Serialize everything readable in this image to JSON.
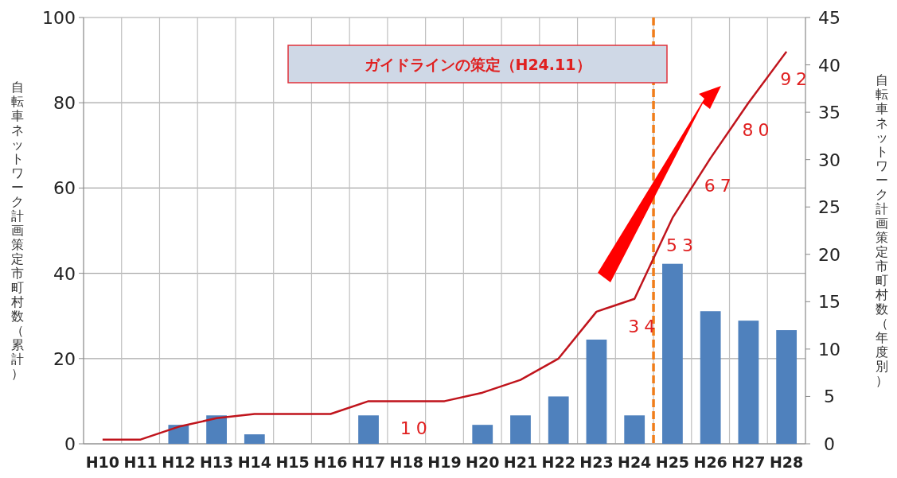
{
  "chart_data": {
    "type": "bar",
    "ylabel": "自転車ネットワーク計画策定市町村数（累計）",
    "y2label": "自転車ネットワーク計画策定市町村数（年度別）",
    "categories": [
      "H10",
      "H11",
      "H12",
      "H13",
      "H14",
      "H15",
      "H16",
      "H17",
      "H18",
      "H19",
      "H20",
      "H21",
      "H22",
      "H23",
      "H24",
      "H25",
      "H26",
      "H27",
      "H28"
    ],
    "series": [
      {
        "axis": "y2",
        "color": "#4f81bd",
        "values": [
          0,
          0,
          2,
          3,
          1,
          0,
          0,
          3,
          0,
          0,
          2,
          3,
          5,
          11,
          3,
          19,
          14,
          13,
          12
        ]
      },
      {
        "type": "line",
        "color": "#c0141c",
        "values": [
          1,
          1,
          4,
          6,
          7,
          7,
          7,
          10,
          10,
          10,
          12,
          15,
          20,
          31,
          34,
          53,
          67,
          80,
          92
        ],
        "value_labels": [
          null,
          null,
          null,
          null,
          null,
          null,
          null,
          null,
          "10",
          null,
          null,
          null,
          null,
          null,
          "34",
          "53",
          "67",
          "80",
          "92"
        ]
      }
    ],
    "ylim": [
      0,
      100
    ],
    "yticks": [
      0,
      20,
      40,
      60,
      80,
      100
    ],
    "y2lim": [
      0,
      45
    ],
    "y2ticks": [
      0,
      5,
      10,
      15,
      20,
      25,
      30,
      35,
      40,
      45
    ],
    "grid": true,
    "ref_lines": [
      {
        "axis": "x",
        "value": "H24",
        "color": "#f07d1a",
        "line_style": "dashed"
      }
    ],
    "annotations": [
      "ガイドラインの策定（H24.11）"
    ]
  }
}
